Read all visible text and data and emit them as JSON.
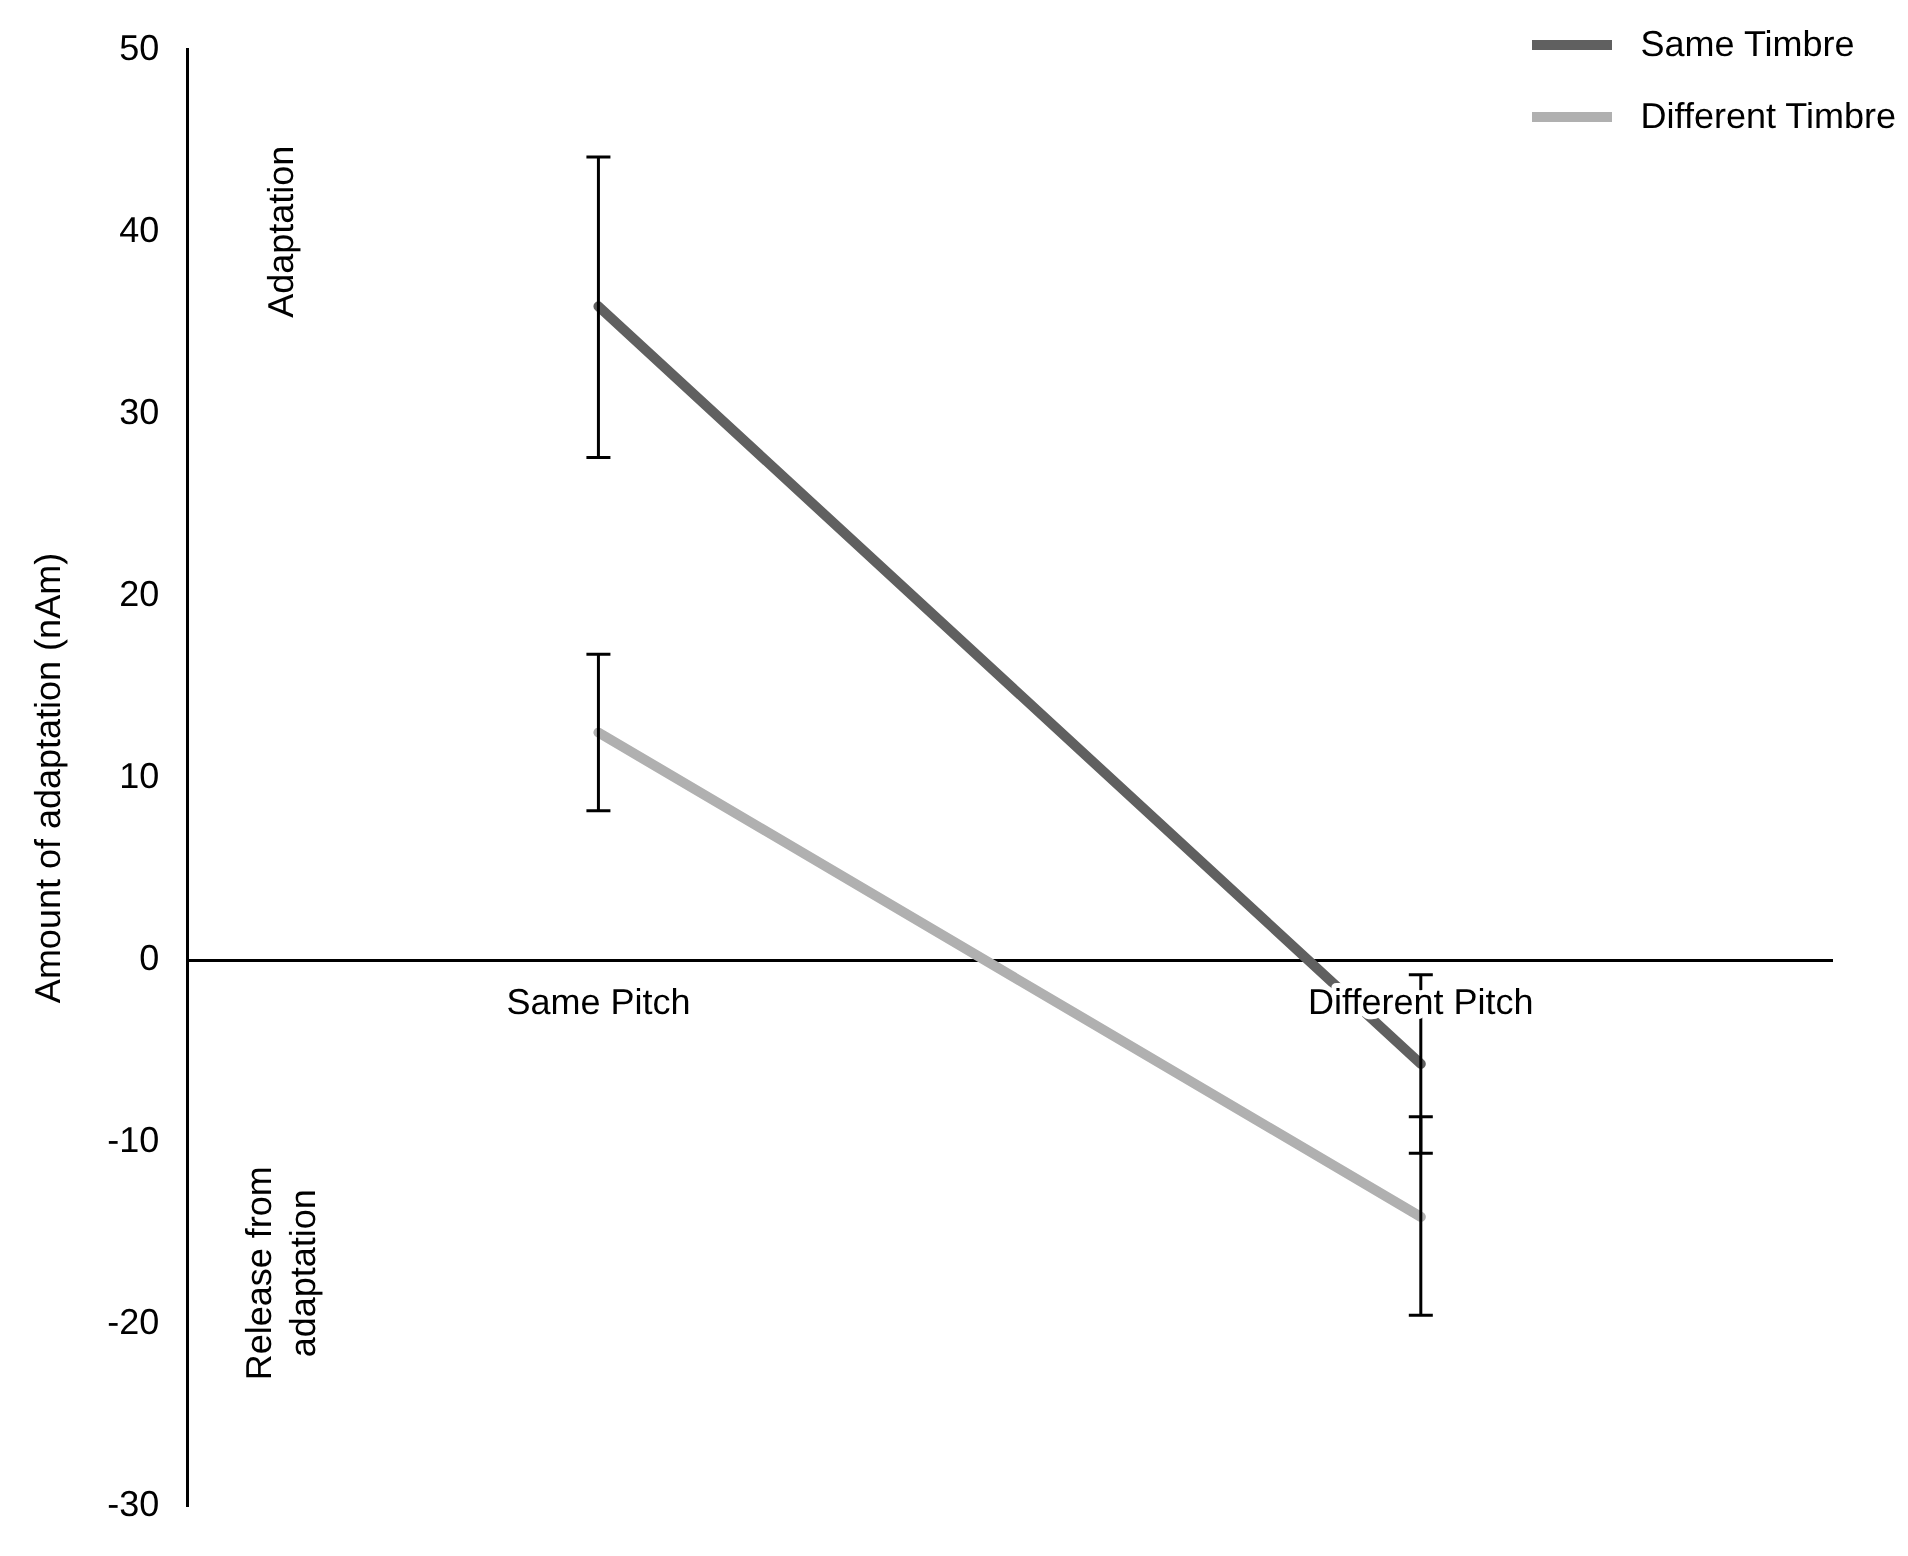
{
  "chart_data": {
    "type": "line",
    "ylabel": "Amount of adaptation (nAm)",
    "categories": [
      "Same Pitch",
      "Different Pitch"
    ],
    "series": [
      {
        "name": "Same Timbre",
        "color": "#606060",
        "values": [
          35.9,
          -5.7
        ],
        "errors": [
          [
            27.6,
            44.1
          ],
          [
            -10.6,
            -0.8
          ]
        ]
      },
      {
        "name": "Different Timbre",
        "color": "#b0b0b0",
        "values": [
          12.5,
          -14.1
        ],
        "errors": [
          [
            8.2,
            16.8
          ],
          [
            -19.5,
            -8.6
          ]
        ]
      }
    ],
    "ylim": [
      -30,
      50
    ],
    "yticks": [
      -30,
      -20,
      -10,
      0,
      10,
      20,
      30,
      40,
      50
    ],
    "grid": false,
    "legend": "top right",
    "marker": "none",
    "line_style": "solid",
    "annotations": [
      "Adaptation",
      "Release from\nadaptation"
    ]
  }
}
